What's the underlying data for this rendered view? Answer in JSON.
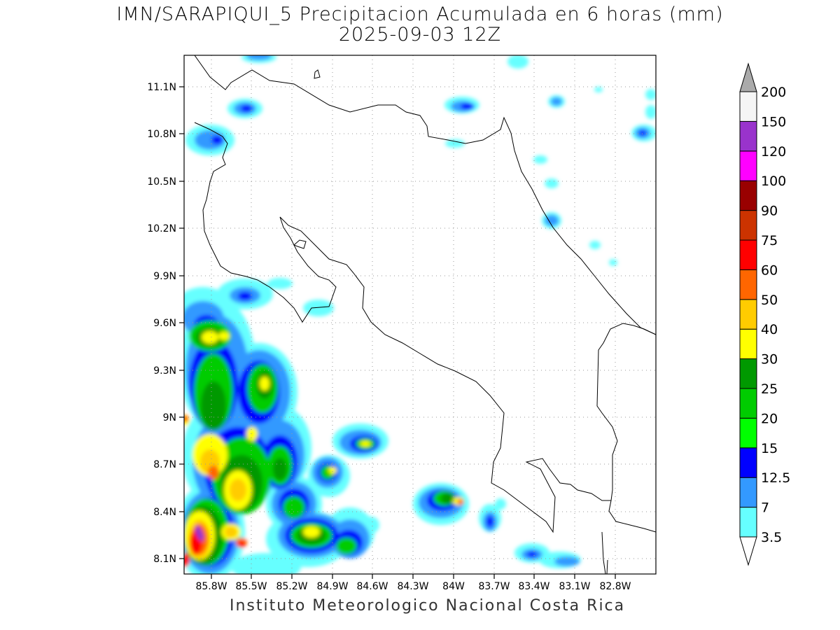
{
  "title": {
    "line1": "IMN/SARAPIQUI_5 Precipitacion Acumulada en 6 horas (mm)",
    "line2": "2025-09-03 12Z"
  },
  "footer": "Instituto Meteorologico Nacional Costa Rica",
  "axes": {
    "lat_labels": [
      "11.1N",
      "10.8N",
      "10.5N",
      "10.2N",
      "9.9N",
      "9.6N",
      "9.3N",
      "9N",
      "8.7N",
      "8.4N",
      "8.1N"
    ],
    "lon_labels": [
      "85.8W",
      "85.5W",
      "85.2W",
      "84.9W",
      "84.6W",
      "84.3W",
      "84W",
      "83.7W",
      "83.4W",
      "83.1W",
      "82.8W"
    ]
  },
  "colorbar": {
    "levels": [
      "3.5",
      "7",
      "12.5",
      "15",
      "20",
      "25",
      "30",
      "40",
      "50",
      "60",
      "75",
      "90",
      "100",
      "120",
      "150",
      "200"
    ],
    "colors": [
      "#66ffff",
      "#3399ff",
      "#0000ff",
      "#00ff00",
      "#00cc00",
      "#009900",
      "#ffff00",
      "#ffcc00",
      "#ff6600",
      "#ff0000",
      "#cc3300",
      "#990000",
      "#ff00ff",
      "#9933cc",
      "#f5f5f5",
      "#aaaaaa"
    ]
  }
}
